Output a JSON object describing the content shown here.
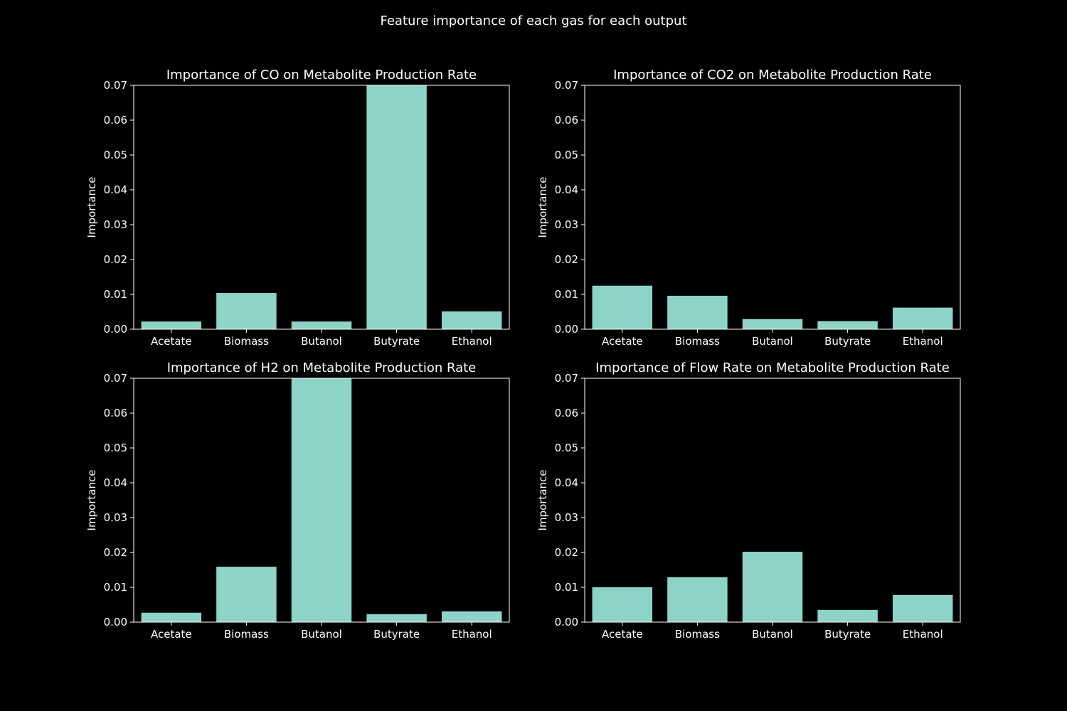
{
  "figure": {
    "suptitle": "Feature importance of each gas for each output",
    "background": "#000000",
    "foreground": "#ffffff",
    "bar_color": "#8dd3c7"
  },
  "chart_data": [
    {
      "type": "bar",
      "title": "Importance of CO on Metabolite Production Rate",
      "xlabel": "",
      "ylabel": "Importance",
      "categories": [
        "Acetate",
        "Biomass",
        "Butanol",
        "Butyrate",
        "Ethanol"
      ],
      "values": [
        0.0022,
        0.0104,
        0.0022,
        0.0705,
        0.0051
      ],
      "ylim": [
        0,
        0.07
      ],
      "yticks": [
        "0.00",
        "0.01",
        "0.02",
        "0.03",
        "0.04",
        "0.05",
        "0.06",
        "0.07"
      ],
      "grid": false
    },
    {
      "type": "bar",
      "title": "Importance of CO2 on Metabolite Production Rate",
      "xlabel": "",
      "ylabel": "Importance",
      "categories": [
        "Acetate",
        "Biomass",
        "Butanol",
        "Butyrate",
        "Ethanol"
      ],
      "values": [
        0.0125,
        0.0096,
        0.0029,
        0.0023,
        0.0062
      ],
      "ylim": [
        0,
        0.07
      ],
      "yticks": [
        "0.00",
        "0.01",
        "0.02",
        "0.03",
        "0.04",
        "0.05",
        "0.06",
        "0.07"
      ],
      "grid": false
    },
    {
      "type": "bar",
      "title": "Importance of H2 on Metabolite Production Rate",
      "xlabel": "",
      "ylabel": "Importance",
      "categories": [
        "Acetate",
        "Biomass",
        "Butanol",
        "Butyrate",
        "Ethanol"
      ],
      "values": [
        0.0027,
        0.0159,
        0.0705,
        0.0023,
        0.0031
      ],
      "ylim": [
        0,
        0.07
      ],
      "yticks": [
        "0.00",
        "0.01",
        "0.02",
        "0.03",
        "0.04",
        "0.05",
        "0.06",
        "0.07"
      ],
      "grid": false
    },
    {
      "type": "bar",
      "title": "Importance of Flow Rate on Metabolite Production Rate",
      "xlabel": "",
      "ylabel": "Importance",
      "categories": [
        "Acetate",
        "Biomass",
        "Butanol",
        "Butyrate",
        "Ethanol"
      ],
      "values": [
        0.01,
        0.0129,
        0.0202,
        0.0035,
        0.0078
      ],
      "ylim": [
        0,
        0.07
      ],
      "yticks": [
        "0.00",
        "0.01",
        "0.02",
        "0.03",
        "0.04",
        "0.05",
        "0.06",
        "0.07"
      ],
      "grid": false
    }
  ]
}
